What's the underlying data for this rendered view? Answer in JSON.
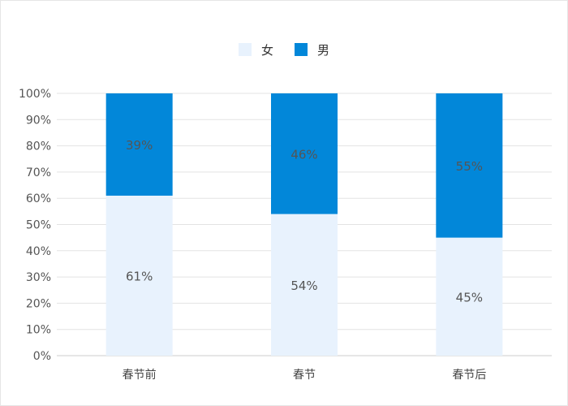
{
  "colors": {
    "female": "#e8f2fd",
    "male": "#0287d9"
  },
  "legend": [
    {
      "label": "女",
      "color": "#e8f2fd"
    },
    {
      "label": "男",
      "color": "#0287d9"
    }
  ],
  "chart_data": {
    "type": "bar",
    "stacked": true,
    "categories": [
      "春节前",
      "春节",
      "春节后"
    ],
    "series": [
      {
        "name": "女",
        "values": [
          61,
          54,
          45
        ],
        "labels": [
          "61%",
          "54%",
          "45%"
        ],
        "color": "#e8f2fd"
      },
      {
        "name": "男",
        "values": [
          39,
          46,
          55
        ],
        "labels": [
          "39%",
          "46%",
          "55%"
        ],
        "color": "#0287d9"
      }
    ],
    "ylim": [
      0,
      100
    ],
    "yticks": [
      "0%",
      "10%",
      "20%",
      "30%",
      "40%",
      "50%",
      "60%",
      "70%",
      "80%",
      "90%",
      "100%"
    ],
    "grid": true,
    "legend_position": "top-center"
  }
}
